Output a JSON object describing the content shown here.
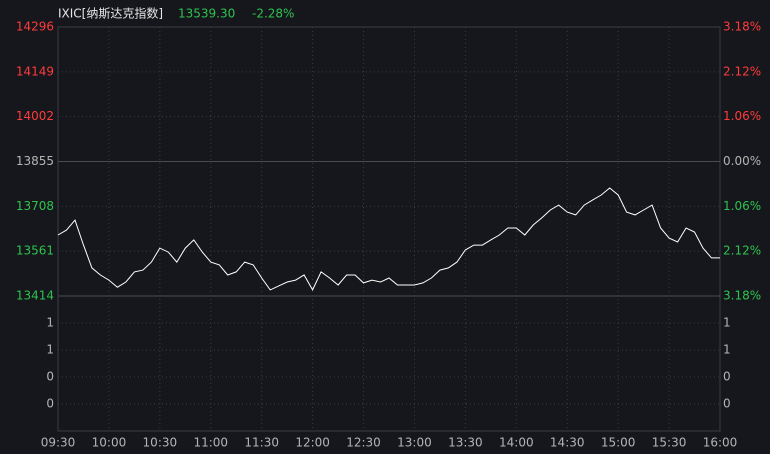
{
  "chart_data": {
    "type": "line",
    "title": "IXIC[纳斯达克指数]",
    "last_price": "13539.30",
    "change": "-2.28%",
    "categories": [
      "09:30",
      "10:00",
      "10:30",
      "11:00",
      "11:30",
      "12:00",
      "12:30",
      "13:00",
      "13:30",
      "14:00",
      "14:30",
      "15:00",
      "15:30",
      "16:00"
    ],
    "x": [
      "09:30",
      "09:35",
      "09:40",
      "09:45",
      "09:50",
      "09:55",
      "10:00",
      "10:05",
      "10:10",
      "10:15",
      "10:20",
      "10:25",
      "10:30",
      "10:35",
      "10:40",
      "10:45",
      "10:50",
      "10:55",
      "11:00",
      "11:05",
      "11:10",
      "11:15",
      "11:20",
      "11:25",
      "11:30",
      "11:35",
      "11:40",
      "11:45",
      "11:50",
      "11:55",
      "12:00",
      "12:05",
      "12:10",
      "12:15",
      "12:20",
      "12:25",
      "12:30",
      "12:35",
      "12:40",
      "12:45",
      "12:50",
      "12:55",
      "13:00",
      "13:05",
      "13:10",
      "13:15",
      "13:20",
      "13:25",
      "13:30",
      "13:35",
      "13:40",
      "13:45",
      "13:50",
      "13:55",
      "14:00",
      "14:05",
      "14:10",
      "14:15",
      "14:20",
      "14:25",
      "14:30",
      "14:35",
      "14:40",
      "14:45",
      "14:50",
      "14:55",
      "15:00",
      "15:05",
      "15:10",
      "15:15",
      "15:20",
      "15:25",
      "15:30",
      "15:35",
      "15:40",
      "15:45",
      "15:50",
      "15:55",
      "16:00"
    ],
    "series": [
      {
        "name": "IXIC",
        "color": "#ffffff",
        "values": [
          13614,
          13630,
          13663,
          13581,
          13506,
          13483,
          13466,
          13443,
          13460,
          13493,
          13499,
          13525,
          13571,
          13558,
          13525,
          13571,
          13598,
          13558,
          13525,
          13516,
          13483,
          13493,
          13525,
          13516,
          13473,
          13434,
          13447,
          13460,
          13466,
          13483,
          13434,
          13493,
          13473,
          13450,
          13483,
          13483,
          13457,
          13466,
          13460,
          13473,
          13450,
          13450,
          13450,
          13457,
          13473,
          13499,
          13506,
          13525,
          13565,
          13581,
          13581,
          13598,
          13614,
          13637,
          13637,
          13614,
          13647,
          13670,
          13696,
          13712,
          13689,
          13680,
          13712,
          13729,
          13745,
          13768,
          13745,
          13689,
          13680,
          13696,
          13712,
          13637,
          13604,
          13591,
          13637,
          13624,
          13571,
          13539,
          13539
        ]
      }
    ],
    "ylim": [
      13414,
      14296
    ],
    "yticks": [
      14296,
      14149,
      14002,
      13855,
      13708,
      13561,
      13414
    ],
    "y2lim": [
      -3.18,
      3.18
    ],
    "y2ticks": [
      {
        "value": 3.18,
        "label": "3.18%"
      },
      {
        "value": 2.12,
        "label": "2.12%"
      },
      {
        "value": 1.06,
        "label": "1.06%"
      },
      {
        "value": 0,
        "label": "0.00%"
      },
      {
        "value": -1.06,
        "label": "1.06%"
      },
      {
        "value": -2.12,
        "label": "2.12%"
      },
      {
        "value": -3.18,
        "label": "3.18%"
      }
    ],
    "volume_axis_labels": [
      "1",
      "1",
      "0",
      "0"
    ],
    "up_color": "#ff3b3b",
    "down_color": "#2fc24e",
    "flat_color": "#b4b4b4",
    "grid": true
  }
}
